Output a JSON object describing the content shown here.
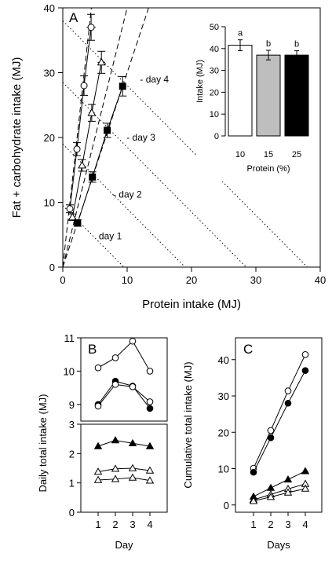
{
  "chart_data": [
    {
      "panel": "A",
      "type": "scatter",
      "xlabel": "Protein intake (MJ)",
      "ylabel": "Fat + carbohydrate intake (MJ)",
      "xlim": [
        0,
        40
      ],
      "ylim": [
        0,
        40
      ],
      "xticks": [
        "0",
        "10",
        "20",
        "30",
        "40"
      ],
      "yticks": [
        "0",
        "10",
        "20",
        "30",
        "40"
      ],
      "grid": false,
      "day_labels": [
        "day 1",
        "day 2",
        "day 3",
        "day 4"
      ],
      "isolines_total": [
        9.5,
        19,
        28.5,
        38
      ],
      "rail_slopes": [
        9,
        4,
        3
      ],
      "series": [
        {
          "marker": "open-circle",
          "x": [
            1.1,
            2.2,
            3.3,
            4.4
          ],
          "y": [
            9.0,
            18.2,
            28.0,
            37.0
          ],
          "err": [
            0.6,
            1.0,
            1.5,
            2.0
          ]
        },
        {
          "marker": "open-triangle",
          "x": [
            1.5,
            3.0,
            4.5,
            6.0
          ],
          "y": [
            7.7,
            15.7,
            23.8,
            31.6
          ],
          "err": [
            0.5,
            0.9,
            1.3,
            1.7
          ]
        },
        {
          "marker": "filled-square",
          "x": [
            2.3,
            4.6,
            6.9,
            9.3
          ],
          "y": [
            6.8,
            13.9,
            21.1,
            27.9
          ],
          "err": [
            0.5,
            0.8,
            1.1,
            1.5
          ]
        }
      ]
    },
    {
      "panel": "A-inset",
      "type": "bar",
      "xlabel": "Protein (%)",
      "ylabel": "Intake (MJ)",
      "categories": [
        "10",
        "15",
        "25"
      ],
      "values": [
        41.5,
        37,
        37
      ],
      "err": [
        2.5,
        2.2,
        2.0
      ],
      "letters": [
        "a",
        "b",
        "b"
      ],
      "fills": [
        "#ffffff",
        "#bebebe",
        "#000000"
      ],
      "ylim": [
        0,
        50
      ],
      "yticks": [
        "0",
        "10",
        "20",
        "30",
        "40",
        "50"
      ]
    },
    {
      "panel": "B",
      "type": "line",
      "xlabel": "Day",
      "ylabel": "Daily total intake (MJ)",
      "categories": [
        "1",
        "2",
        "3",
        "4"
      ],
      "upper_ylim": [
        8.5,
        11
      ],
      "upper_yticks": [
        "9",
        "10",
        "11"
      ],
      "lower_ylim": [
        0,
        3
      ],
      "lower_yticks": [
        "0",
        "1",
        "2",
        "3"
      ],
      "series": [
        {
          "panel_part": "upper",
          "marker": "open-circle",
          "values": [
            10.1,
            10.4,
            10.9,
            10.0
          ]
        },
        {
          "panel_part": "upper",
          "marker": "filled-circle",
          "values": [
            9.0,
            9.7,
            9.55,
            8.88
          ]
        },
        {
          "panel_part": "upper",
          "marker": "open-circle",
          "values": [
            8.95,
            9.6,
            9.53,
            9.08
          ]
        },
        {
          "panel_part": "lower",
          "marker": "filled-triangle",
          "values": [
            2.25,
            2.45,
            2.35,
            2.25
          ]
        },
        {
          "panel_part": "lower",
          "marker": "open-triangle",
          "values": [
            1.38,
            1.48,
            1.5,
            1.42
          ]
        },
        {
          "panel_part": "lower",
          "marker": "open-triangle",
          "values": [
            1.1,
            1.13,
            1.18,
            1.08
          ]
        }
      ]
    },
    {
      "panel": "C",
      "type": "line",
      "xlabel": "Days",
      "ylabel": "Cumulative total intake (MJ)",
      "categories": [
        "1",
        "2",
        "3",
        "4"
      ],
      "ylim": [
        -2,
        46
      ],
      "yticks": [
        "0",
        "10",
        "20",
        "30",
        "40"
      ],
      "series": [
        {
          "marker": "open-circle",
          "values": [
            10.1,
            20.5,
            31.4,
            41.4
          ]
        },
        {
          "marker": "filled-circle",
          "values": [
            9.0,
            18.5,
            28.0,
            37.0
          ]
        },
        {
          "marker": "filled-triangle",
          "values": [
            2.3,
            4.7,
            7.0,
            9.3
          ]
        },
        {
          "marker": "open-triangle",
          "values": [
            1.4,
            2.9,
            4.4,
            5.8
          ]
        },
        {
          "marker": "open-triangle",
          "values": [
            1.1,
            2.2,
            3.4,
            4.5
          ]
        }
      ]
    }
  ]
}
